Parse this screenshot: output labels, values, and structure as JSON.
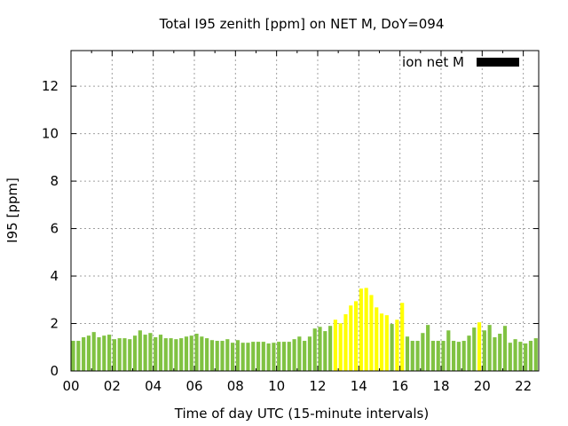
{
  "chart_data": {
    "type": "bar",
    "title": "Total I95 zenith [ppm] on NET M, DoY=094",
    "xlabel": "Time of day UTC (15-minute intervals)",
    "ylabel": "I95 [ppm]",
    "xlim": [
      0,
      22.75
    ],
    "ylim": [
      0,
      13.5
    ],
    "grid": true,
    "legend": {
      "label": "ion net M",
      "placement": "top-right",
      "color": "#000000"
    },
    "x_ticks": [
      0,
      2,
      4,
      6,
      8,
      10,
      12,
      14,
      16,
      18,
      20,
      22
    ],
    "x_tick_labels": [
      "00",
      "02",
      "04",
      "06",
      "08",
      "10",
      "12",
      "14",
      "16",
      "18",
      "20",
      "22"
    ],
    "y_ticks": [
      0,
      2,
      4,
      6,
      8,
      10,
      12
    ],
    "y_tick_labels": [
      "0",
      "2",
      "4",
      "6",
      "8",
      "10",
      "12"
    ],
    "bar_interval_hours": 0.25,
    "colors": {
      "normal": "#80c242",
      "highlight": "#ffff00"
    },
    "values": [
      1.27,
      1.27,
      1.42,
      1.49,
      1.64,
      1.42,
      1.49,
      1.53,
      1.34,
      1.38,
      1.38,
      1.34,
      1.49,
      1.71,
      1.53,
      1.6,
      1.42,
      1.53,
      1.38,
      1.38,
      1.34,
      1.38,
      1.45,
      1.49,
      1.57,
      1.45,
      1.38,
      1.3,
      1.27,
      1.27,
      1.34,
      1.19,
      1.3,
      1.19,
      1.19,
      1.23,
      1.23,
      1.23,
      1.16,
      1.19,
      1.23,
      1.23,
      1.23,
      1.34,
      1.45,
      1.27,
      1.45,
      1.79,
      1.86,
      1.68,
      1.9,
      2.16,
      2.01,
      2.39,
      2.76,
      2.94,
      3.47,
      3.5,
      3.2,
      2.68,
      2.42,
      2.35,
      1.98,
      2.16,
      2.87,
      1.45,
      1.27,
      1.27,
      1.6,
      1.94,
      1.27,
      1.27,
      1.27,
      1.71,
      1.27,
      1.23,
      1.27,
      1.49,
      1.83,
      2.05,
      1.71,
      1.94,
      1.42,
      1.57,
      1.9,
      1.19,
      1.34,
      1.23,
      1.16,
      1.27,
      1.38
    ],
    "highlight_indices": [
      51,
      52,
      53,
      54,
      55,
      56,
      57,
      58,
      59,
      60,
      61,
      63,
      64,
      79
    ]
  }
}
